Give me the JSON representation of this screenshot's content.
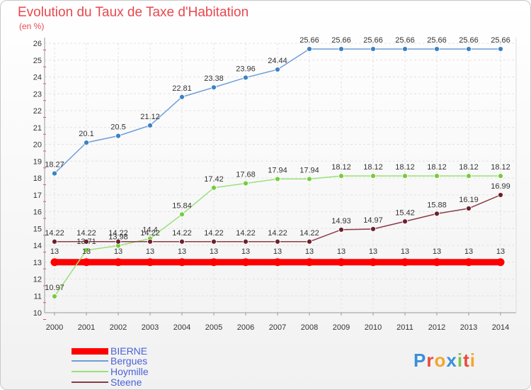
{
  "header": {
    "title": "Evolution du Taux de Taxe d'Habitation",
    "unit": "(en %)"
  },
  "chart_data": {
    "type": "line",
    "title": "Evolution du Taux de Taxe d'Habitation",
    "ylabel": "(en %)",
    "xlabel": "",
    "x": [
      2000,
      2001,
      2002,
      2003,
      2004,
      2005,
      2006,
      2007,
      2008,
      2009,
      2010,
      2011,
      2012,
      2013,
      2014
    ],
    "ylim": [
      10,
      26
    ],
    "yticks": [
      10,
      11,
      12,
      13,
      14,
      15,
      16,
      17,
      18,
      19,
      20,
      21,
      22,
      23,
      24,
      25,
      26
    ],
    "grid": true,
    "legend_position": "bottom-left",
    "series": [
      {
        "name": "BIERNE",
        "color": "#ff0000",
        "width": 9,
        "values": [
          13,
          13,
          13,
          13,
          13,
          13,
          13,
          13,
          13,
          13,
          13,
          13,
          13,
          13,
          13
        ],
        "labels": [
          "13",
          "13",
          "13",
          "13",
          "13",
          "13",
          "13",
          "13",
          "13",
          "13",
          "13",
          "13",
          "13",
          "13",
          "13"
        ]
      },
      {
        "name": "Bergues",
        "color": "#6f9fd8",
        "marker": "#3b82c4",
        "width": 1.5,
        "values": [
          18.27,
          20.1,
          20.5,
          21.12,
          22.81,
          23.38,
          23.96,
          24.44,
          25.66,
          25.66,
          25.66,
          25.66,
          25.66,
          25.66,
          25.66
        ],
        "labels": [
          "18.27",
          "20.1",
          "20.5",
          "21.12",
          "22.81",
          "23.38",
          "23.96",
          "24.44",
          "25.66",
          "25.66",
          "25.66",
          "25.66",
          "25.66",
          "25.66",
          "25.66"
        ]
      },
      {
        "name": "Hoymille",
        "color": "#9be07a",
        "marker": "#76cc3e",
        "width": 1.5,
        "values": [
          10.97,
          13.71,
          13.98,
          14.4,
          15.84,
          17.42,
          17.68,
          17.94,
          17.94,
          18.12,
          18.12,
          18.12,
          18.12,
          18.12,
          18.12
        ],
        "labels": [
          "10.97",
          "13.71",
          "13.98",
          "14.4",
          "15.84",
          "17.42",
          "17.68",
          "17.94",
          "17.94",
          "18.12",
          "18.12",
          "18.12",
          "18.12",
          "18.12",
          "18.12"
        ]
      },
      {
        "name": "Steene",
        "color": "#8a3c48",
        "marker": "#6e1f2c",
        "width": 1.5,
        "values": [
          14.22,
          14.22,
          14.22,
          14.22,
          14.22,
          14.22,
          14.22,
          14.22,
          14.22,
          14.93,
          14.97,
          15.42,
          15.88,
          16.19,
          16.99
        ],
        "labels": [
          "14.22",
          "14.22",
          "14.22",
          "14.22",
          "14.22",
          "14.22",
          "14.22",
          "14.22",
          "14.22",
          "14.93",
          "14.97",
          "15.42",
          "15.88",
          "16.19",
          "16.99"
        ]
      }
    ]
  },
  "legend": {
    "items": [
      {
        "label": "BIERNE",
        "color": "#ff0000"
      },
      {
        "label": "Bergues",
        "color": "#6f9fd8"
      },
      {
        "label": "Hoymille",
        "color": "#9be07a"
      },
      {
        "label": "Steene",
        "color": "#8a3c48"
      }
    ]
  },
  "branding": {
    "logo_text": "Proxiti",
    "letters": [
      {
        "ch": "P",
        "color": "#3a8fd9"
      },
      {
        "ch": "r",
        "color": "#e84b3a"
      },
      {
        "ch": "o",
        "color": "#f2a62e"
      },
      {
        "ch": "x",
        "color": "#3a8fd9"
      },
      {
        "ch": "i",
        "color": "#7cc44a"
      },
      {
        "ch": "t",
        "color": "#e84b3a"
      },
      {
        "ch": "i",
        "color": "#f2a62e"
      }
    ]
  }
}
